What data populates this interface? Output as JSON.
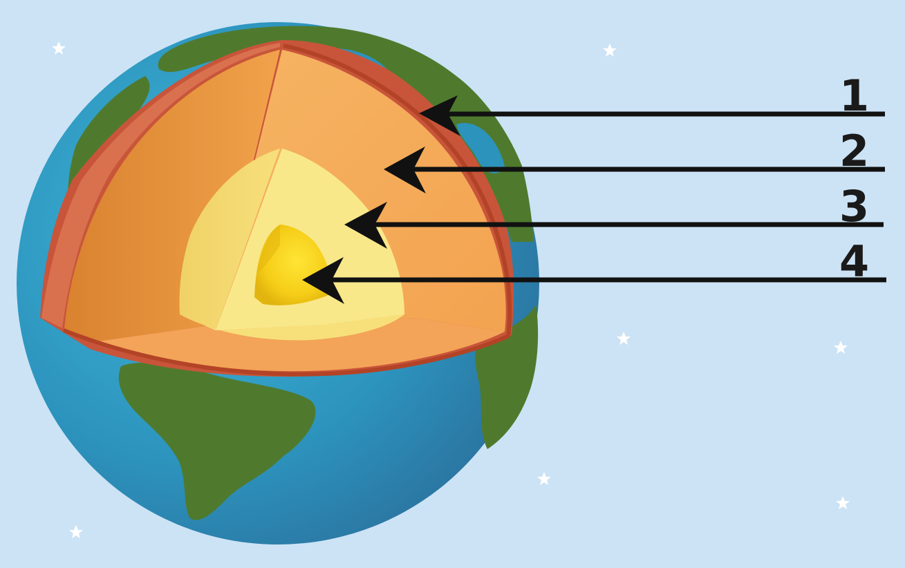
{
  "labels": [
    {
      "number": "1",
      "layer": "crust"
    },
    {
      "number": "2",
      "layer": "mantle"
    },
    {
      "number": "3",
      "layer": "outer-core"
    },
    {
      "number": "4",
      "layer": "inner-core"
    }
  ],
  "colors": {
    "background": "#cce3f5",
    "ocean": "#2f9ec4",
    "land": "#4f7a2e",
    "crust": "#c8553a",
    "mantle": "#f4a955",
    "outer_core": "#f8e27a",
    "inner_core": "#f4d11d",
    "arrow": "#111111",
    "star": "#ffffff"
  },
  "icons": [
    "star-icon",
    "earth-cross-section",
    "arrow-icon"
  ]
}
